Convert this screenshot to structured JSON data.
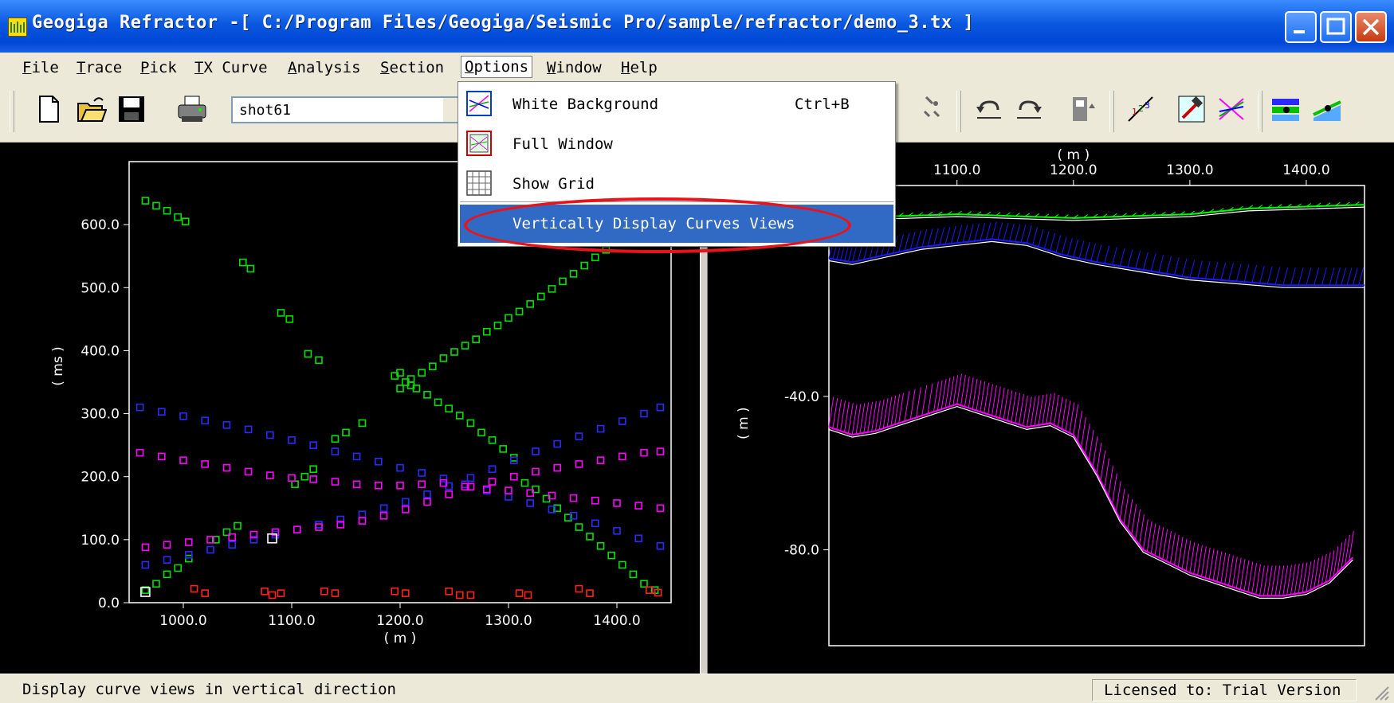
{
  "window": {
    "title": "Geogiga Refractor -[ C:/Program Files/Geogiga/Seismic Pro/sample/refractor/demo_3.tx ]"
  },
  "menubar": {
    "items": [
      "File",
      "Trace",
      "Pick",
      "TX Curve",
      "Analysis",
      "Section",
      "Options",
      "Window",
      "Help"
    ],
    "active": "Options"
  },
  "toolbar": {
    "shot_select": "shot61",
    "icons": [
      "new-file-icon",
      "open-folder-icon",
      "save-icon",
      "print-icon",
      "pick-icon",
      "undo-icon",
      "redo-icon",
      "export-icon",
      "velocity-icon",
      "hammer-icon",
      "crossover-icon",
      "layer-icon",
      "layer-edit-icon"
    ]
  },
  "options_menu": {
    "items": [
      {
        "label": "White Background",
        "shortcut": "Ctrl+B",
        "icon": "white-background-icon"
      },
      {
        "label": "Full Window",
        "shortcut": "",
        "icon": "full-window-icon"
      },
      {
        "label": "Show Grid",
        "shortcut": "",
        "icon": "grid-icon"
      },
      {
        "label": "Vertically Display Curves Views",
        "shortcut": "",
        "icon": "",
        "highlighted": true
      }
    ],
    "highlight_color": "#316ac5",
    "annotation_color": "#e8141a"
  },
  "chart_data": [
    {
      "type": "scatter",
      "xlabel": "( m )",
      "ylabel": "( ms )",
      "xticks": [
        "1000.0",
        "1100.0",
        "1200.0",
        "1300.0",
        "1400.0"
      ],
      "yticks": [
        "0.0",
        "100.0",
        "200.0",
        "300.0",
        "400.0",
        "500.0",
        "600.0"
      ],
      "xlim": [
        950,
        1450
      ],
      "ylim": [
        0,
        700
      ],
      "background": "#000000",
      "series": [
        {
          "color": "#00e000",
          "points": [
            [
              965,
              638
            ],
            [
              975,
              630
            ],
            [
              985,
              622
            ],
            [
              995,
              612
            ],
            [
              1002,
              605
            ],
            [
              1055,
              540
            ],
            [
              1062,
              530
            ],
            [
              1090,
              460
            ],
            [
              1098,
              450
            ],
            [
              1115,
              395
            ],
            [
              1125,
              385
            ],
            [
              1140,
              260
            ],
            [
              1150,
              270
            ],
            [
              1165,
              285
            ],
            [
              1103,
              188
            ],
            [
              1112,
              200
            ],
            [
              1120,
              212
            ],
            [
              1030,
              100
            ],
            [
              1040,
              112
            ],
            [
              1050,
              122
            ],
            [
              965,
              20
            ],
            [
              975,
              30
            ],
            [
              985,
              45
            ],
            [
              995,
              55
            ],
            [
              1005,
              70
            ],
            [
              1195,
              360
            ],
            [
              1205,
              350
            ],
            [
              1215,
              340
            ],
            [
              1225,
              330
            ],
            [
              1235,
              318
            ],
            [
              1245,
              308
            ],
            [
              1255,
              297
            ],
            [
              1265,
              285
            ],
            [
              1275,
              270
            ],
            [
              1285,
              258
            ],
            [
              1295,
              244
            ],
            [
              1305,
              230
            ],
            [
              1315,
              190
            ],
            [
              1325,
              180
            ],
            [
              1335,
              165
            ],
            [
              1345,
              150
            ],
            [
              1355,
              135
            ],
            [
              1365,
              120
            ],
            [
              1375,
              105
            ],
            [
              1385,
              90
            ],
            [
              1395,
              75
            ],
            [
              1405,
              60
            ],
            [
              1415,
              45
            ],
            [
              1425,
              30
            ],
            [
              1435,
              20
            ],
            [
              1200,
              340
            ],
            [
              1210,
              355
            ],
            [
              1220,
              365
            ],
            [
              1230,
              375
            ],
            [
              1240,
              388
            ],
            [
              1250,
              398
            ],
            [
              1260,
              408
            ],
            [
              1270,
              418
            ],
            [
              1280,
              430
            ],
            [
              1290,
              440
            ],
            [
              1300,
              452
            ],
            [
              1310,
              462
            ],
            [
              1320,
              474
            ],
            [
              1330,
              486
            ],
            [
              1340,
              498
            ],
            [
              1350,
              510
            ],
            [
              1360,
              522
            ],
            [
              1370,
              535
            ],
            [
              1380,
              548
            ],
            [
              1390,
              560
            ],
            [
              1200,
              365
            ],
            [
              1210,
              345
            ]
          ]
        },
        {
          "color": "#2a2aff",
          "points": [
            [
              960,
              310
            ],
            [
              980,
              303
            ],
            [
              1000,
              296
            ],
            [
              1020,
              289
            ],
            [
              1040,
              282
            ],
            [
              1060,
              275
            ],
            [
              1080,
              266
            ],
            [
              1100,
              258
            ],
            [
              1120,
              250
            ],
            [
              1140,
              240
            ],
            [
              1160,
              232
            ],
            [
              1180,
              224
            ],
            [
              1200,
              214
            ],
            [
              1220,
              206
            ],
            [
              1240,
              197
            ],
            [
              1260,
              188
            ],
            [
              1280,
              178
            ],
            [
              1300,
              168
            ],
            [
              1320,
              158
            ],
            [
              1340,
              148
            ],
            [
              1360,
              138
            ],
            [
              1380,
              126
            ],
            [
              1400,
              114
            ],
            [
              1420,
              102
            ],
            [
              1440,
              90
            ],
            [
              965,
              60
            ],
            [
              985,
              68
            ],
            [
              1005,
              76
            ],
            [
              1025,
              84
            ],
            [
              1045,
              92
            ],
            [
              1065,
              100
            ],
            [
              1085,
              108
            ],
            [
              1105,
              116
            ],
            [
              1125,
              124
            ],
            [
              1145,
              132
            ],
            [
              1165,
              140
            ],
            [
              1185,
              150
            ],
            [
              1205,
              160
            ],
            [
              1225,
              172
            ],
            [
              1245,
              185
            ],
            [
              1265,
              198
            ],
            [
              1285,
              212
            ],
            [
              1305,
              226
            ],
            [
              1325,
              240
            ],
            [
              1345,
              252
            ],
            [
              1365,
              264
            ],
            [
              1385,
              276
            ],
            [
              1405,
              288
            ],
            [
              1425,
              300
            ],
            [
              1440,
              310
            ]
          ]
        },
        {
          "color": "#ff00ff",
          "points": [
            [
              960,
              238
            ],
            [
              980,
              232
            ],
            [
              1000,
              226
            ],
            [
              1020,
              220
            ],
            [
              1040,
              214
            ],
            [
              1060,
              208
            ],
            [
              1080,
              202
            ],
            [
              1100,
              198
            ],
            [
              1120,
              196
            ],
            [
              1140,
              192
            ],
            [
              1160,
              188
            ],
            [
              1180,
              186
            ],
            [
              1200,
              186
            ],
            [
              1220,
              188
            ],
            [
              1240,
              190
            ],
            [
              1260,
              184
            ],
            [
              1280,
              180
            ],
            [
              1300,
              178
            ],
            [
              1320,
              174
            ],
            [
              1340,
              170
            ],
            [
              1360,
              166
            ],
            [
              1380,
              162
            ],
            [
              1400,
              158
            ],
            [
              1420,
              154
            ],
            [
              1440,
              150
            ],
            [
              965,
              88
            ],
            [
              985,
              92
            ],
            [
              1005,
              96
            ],
            [
              1025,
              100
            ],
            [
              1045,
              104
            ],
            [
              1065,
              108
            ],
            [
              1085,
              112
            ],
            [
              1105,
              116
            ],
            [
              1125,
              120
            ],
            [
              1145,
              124
            ],
            [
              1165,
              130
            ],
            [
              1185,
              138
            ],
            [
              1205,
              148
            ],
            [
              1225,
              160
            ],
            [
              1245,
              172
            ],
            [
              1265,
              184
            ],
            [
              1285,
              192
            ],
            [
              1305,
              200
            ],
            [
              1325,
              208
            ],
            [
              1345,
              214
            ],
            [
              1365,
              220
            ],
            [
              1385,
              226
            ],
            [
              1405,
              232
            ],
            [
              1425,
              238
            ],
            [
              1440,
              240
            ]
          ]
        },
        {
          "color": "#ff2020",
          "points": [
            [
              1010,
              22
            ],
            [
              1020,
              15
            ],
            [
              1075,
              18
            ],
            [
              1082,
              12
            ],
            [
              1090,
              15
            ],
            [
              1130,
              18
            ],
            [
              1140,
              15
            ],
            [
              1195,
              18
            ],
            [
              1205,
              15
            ],
            [
              1245,
              18
            ],
            [
              1255,
              12
            ],
            [
              1265,
              12
            ],
            [
              1310,
              15
            ],
            [
              1318,
              12
            ],
            [
              1365,
              22
            ],
            [
              1375,
              15
            ],
            [
              1430,
              20
            ],
            [
              1438,
              16
            ]
          ]
        },
        {
          "color": "#ffffff",
          "points": [
            [
              965,
              17
            ],
            [
              1082,
              102
            ]
          ]
        }
      ]
    },
    {
      "type": "line",
      "xlabel": "( m )",
      "ylabel": "( m )",
      "xticks": [
        "1100.0",
        "1200.0",
        "1300.0",
        "1400.0"
      ],
      "xtick_partial": "0",
      "yticks": [
        "-40.0",
        "-80.0"
      ],
      "xlim": [
        990,
        1450
      ],
      "ylim": [
        -105,
        15
      ],
      "background": "#000000",
      "series": [
        {
          "color": "#00ff00",
          "points": [
            [
              990,
              8
            ],
            [
              1050,
              7
            ],
            [
              1100,
              7.5
            ],
            [
              1150,
              7
            ],
            [
              1200,
              6.5
            ],
            [
              1250,
              7
            ],
            [
              1300,
              7.5
            ],
            [
              1350,
              9
            ],
            [
              1400,
              9.5
            ],
            [
              1450,
              10
            ]
          ]
        },
        {
          "color": "#1a1aff",
          "points": [
            [
              990,
              -4
            ],
            [
              1010,
              -5
            ],
            [
              1040,
              -3
            ],
            [
              1070,
              -1
            ],
            [
              1100,
              0
            ],
            [
              1130,
              1
            ],
            [
              1160,
              0
            ],
            [
              1190,
              -3
            ],
            [
              1220,
              -5
            ],
            [
              1260,
              -7
            ],
            [
              1300,
              -9
            ],
            [
              1340,
              -10
            ],
            [
              1380,
              -11
            ],
            [
              1420,
              -11
            ],
            [
              1450,
              -11
            ]
          ]
        },
        {
          "color": "#ff00ff",
          "points": [
            [
              990,
              -48
            ],
            [
              1010,
              -50
            ],
            [
              1030,
              -49
            ],
            [
              1050,
              -47
            ],
            [
              1080,
              -44
            ],
            [
              1100,
              -42
            ],
            [
              1120,
              -44
            ],
            [
              1140,
              -46
            ],
            [
              1160,
              -48
            ],
            [
              1180,
              -47
            ],
            [
              1200,
              -50
            ],
            [
              1220,
              -60
            ],
            [
              1240,
              -72
            ],
            [
              1260,
              -80
            ],
            [
              1280,
              -83
            ],
            [
              1300,
              -86
            ],
            [
              1320,
              -88
            ],
            [
              1340,
              -90
            ],
            [
              1360,
              -92
            ],
            [
              1380,
              -92
            ],
            [
              1400,
              -91
            ],
            [
              1420,
              -88
            ],
            [
              1440,
              -82
            ]
          ]
        }
      ]
    }
  ],
  "statusbar": {
    "message": "Display curve views in vertical direction",
    "license": "Licensed to: Trial Version"
  }
}
